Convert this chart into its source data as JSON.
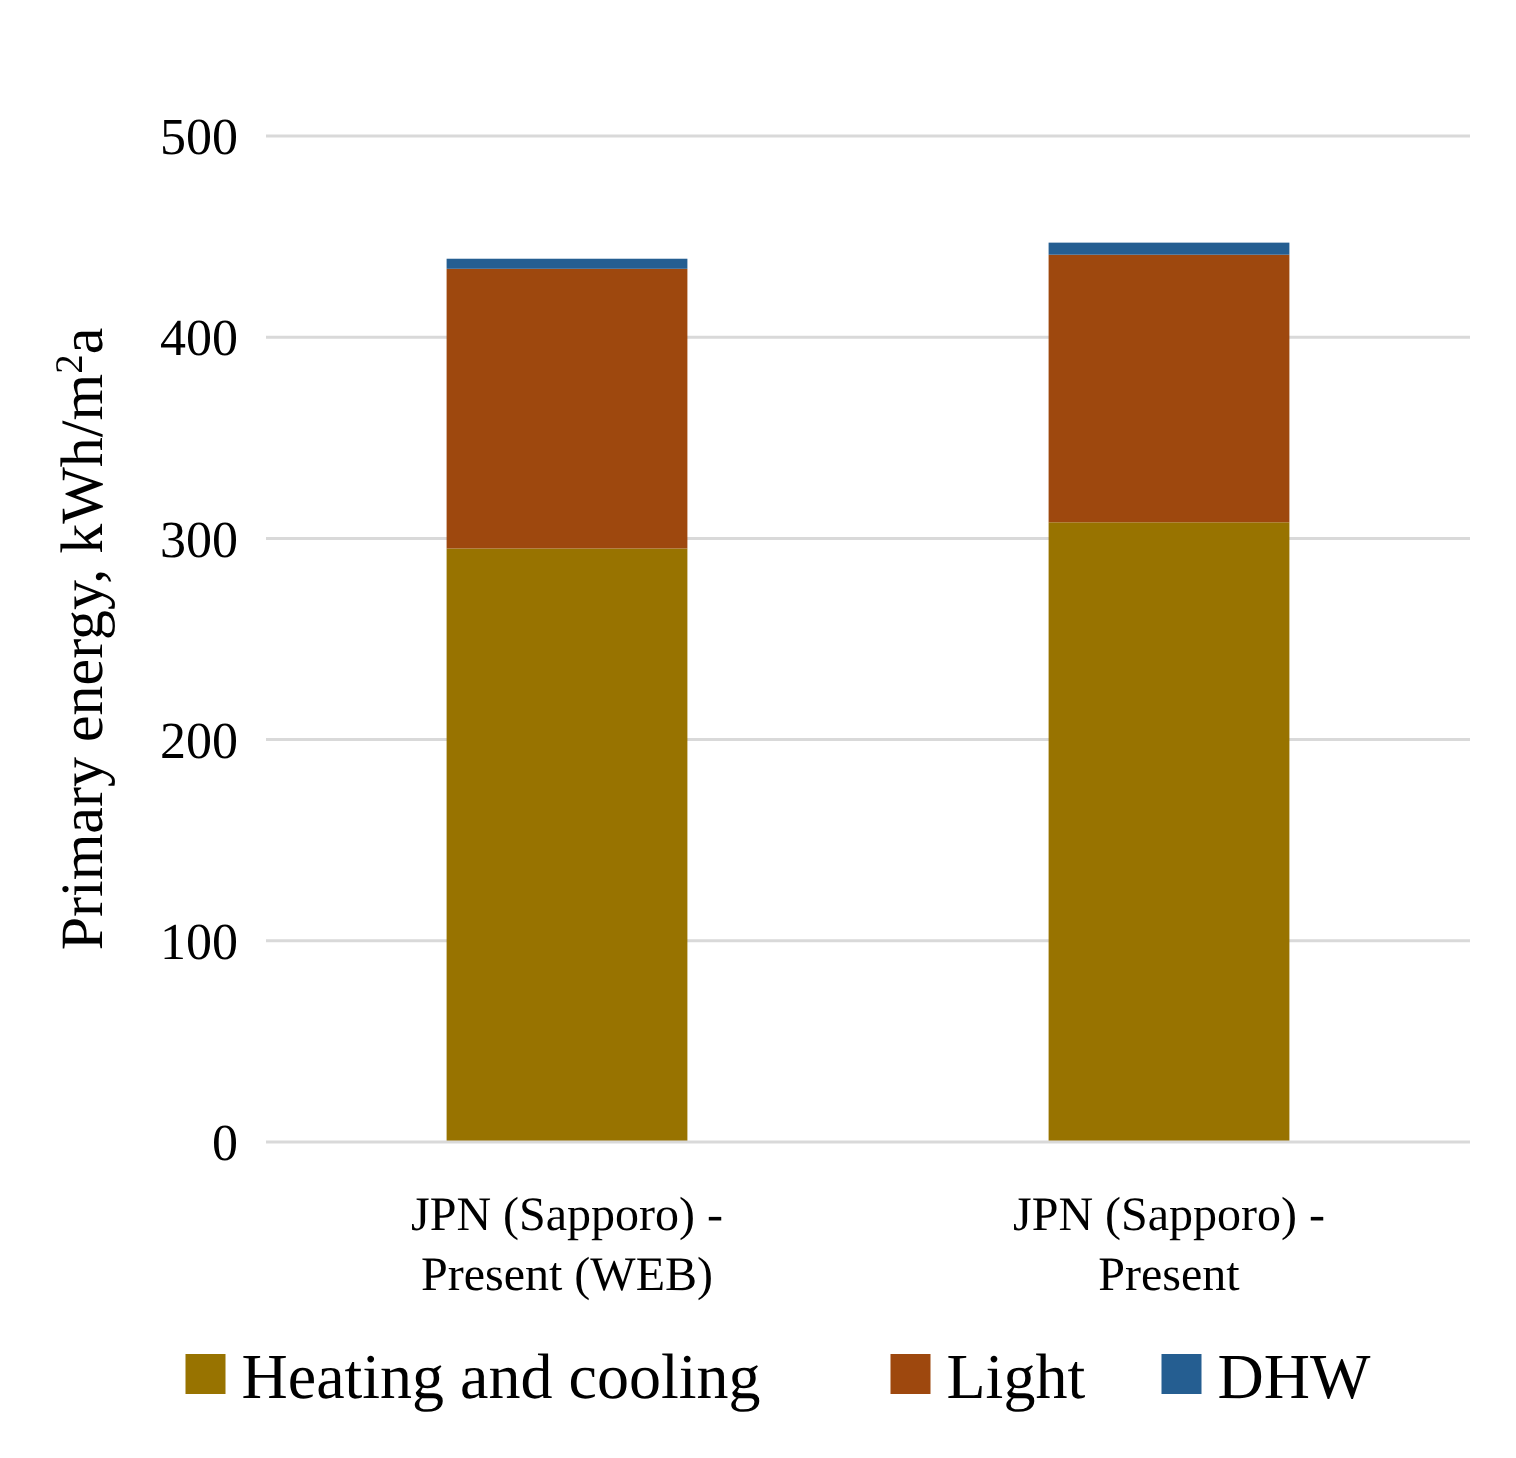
{
  "chart_data": {
    "type": "bar",
    "stacked": true,
    "ylabel": "Primary energy, kWh/m$^{2}$a",
    "categories": [
      "JPN (Sapporo) - Present (WEB)",
      "JPN (Sapporo) - Present"
    ],
    "series": [
      {
        "name": "Heating and cooling",
        "color": "#987300",
        "values": [
          295,
          308
        ]
      },
      {
        "name": "Light",
        "color": "#9e480e",
        "values": [
          139,
          133
        ]
      },
      {
        "name": "DHW",
        "color": "#255e91",
        "values": [
          5,
          6
        ]
      }
    ],
    "ylim": [
      0,
      500
    ],
    "yticks": [
      0,
      100,
      200,
      300,
      400,
      500
    ],
    "grid": "y",
    "legend": "bottom"
  }
}
